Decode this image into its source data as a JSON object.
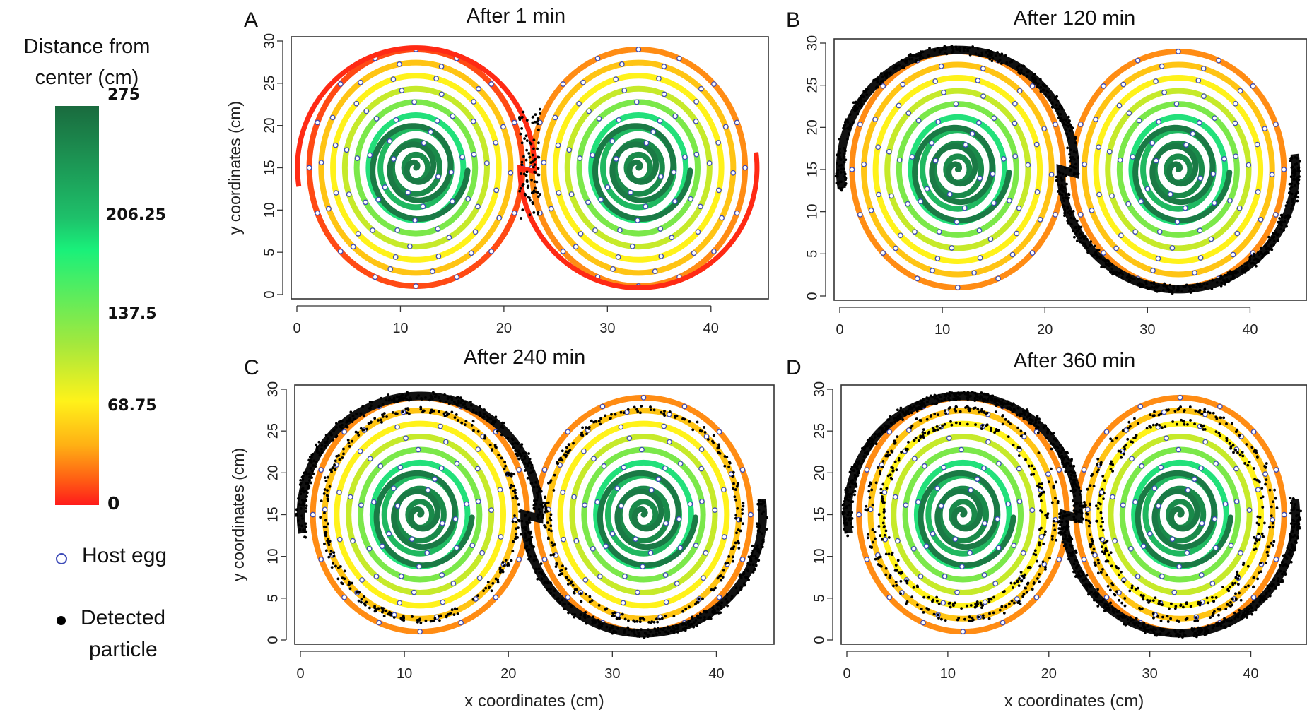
{
  "legend": {
    "title_line1": "Distance from",
    "title_line2": "center (cm)",
    "colorbar_ticks": [
      "275",
      "206.25",
      "137.5",
      "68.75",
      "0"
    ],
    "items": [
      {
        "symbol": "open-circle-blue",
        "label": "Host egg"
      },
      {
        "symbol": "filled-circle-black",
        "label_line1": "Detected",
        "label_line2": "particle"
      }
    ]
  },
  "colors": {
    "spiral_palette": [
      "#1a7a45",
      "#20a85c",
      "#22cf72",
      "#19f07a",
      "#7be84a",
      "#c6ea2a",
      "#fff21a",
      "#ffb014",
      "#ff6e14",
      "#ff1b1b"
    ],
    "egg": "#3d4bb8",
    "particle": "#000000"
  },
  "chart_data": [
    {
      "panel": "A",
      "type": "scatter",
      "title": "After 1 min",
      "xlabel": "",
      "ylabel": "y coordinates (cm)",
      "xlim": [
        0,
        45
      ],
      "ylim": [
        0,
        30
      ],
      "xticks": [
        0,
        10,
        20,
        30,
        40
      ],
      "yticks": [
        0,
        5,
        10,
        15,
        20,
        25,
        30
      ],
      "spirals": [
        {
          "center": [
            11.5,
            15
          ],
          "outer_color": "red"
        },
        {
          "center": [
            33,
            15
          ],
          "outer_color": "orange"
        }
      ],
      "particle_spread": "at the junction between spirals (x≈21–23 cm)"
    },
    {
      "panel": "B",
      "type": "scatter",
      "title": "After 120 min",
      "xlabel": "",
      "ylabel": "",
      "xlim": [
        0,
        45
      ],
      "ylim": [
        0,
        30
      ],
      "xticks": [
        0,
        10,
        20,
        30,
        40
      ],
      "yticks": [
        0,
        5,
        10,
        15,
        20,
        25,
        30
      ],
      "particle_spread": "along the outermost path"
    },
    {
      "panel": "C",
      "type": "scatter",
      "title": "After 240 min",
      "xlabel": "x coordinates (cm)",
      "ylabel": "y coordinates (cm)",
      "xlim": [
        0,
        45
      ],
      "ylim": [
        0,
        30
      ],
      "xticks": [
        0,
        10,
        20,
        30,
        40
      ],
      "yticks": [
        0,
        5,
        10,
        15,
        20,
        25,
        30
      ],
      "particle_spread": "outer path and next ring"
    },
    {
      "panel": "D",
      "type": "scatter",
      "title": "After 360 min",
      "xlabel": "x coordinates (cm)",
      "ylabel": "",
      "xlim": [
        0,
        45
      ],
      "ylim": [
        0,
        30
      ],
      "xticks": [
        0,
        10,
        20,
        30,
        40
      ],
      "yticks": [
        0,
        5,
        10,
        15,
        20,
        25,
        30
      ],
      "particle_spread": "outer path and two inner rings"
    }
  ]
}
